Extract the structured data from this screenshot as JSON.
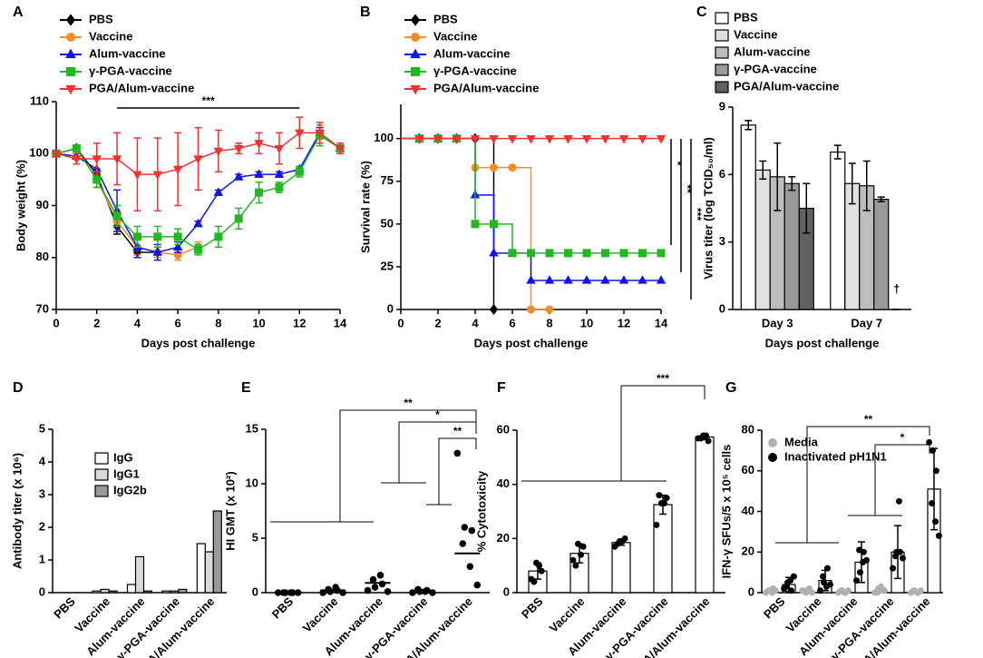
{
  "chart_data": [
    {
      "type": "line",
      "panel": "A",
      "x_label": "Days post challenge",
      "y_label": "Body weight (%)",
      "x": [
        0,
        1,
        2,
        3,
        4,
        5,
        6,
        7,
        8,
        9,
        10,
        11,
        12,
        13,
        14
      ],
      "xlim": [
        0,
        14
      ],
      "xticks": [
        0,
        2,
        4,
        6,
        8,
        10,
        12,
        14
      ],
      "ylim": [
        70,
        110
      ],
      "yticks": [
        70,
        80,
        90,
        100,
        110
      ],
      "annotations": [
        "***"
      ],
      "series": [
        {
          "name": "PBS",
          "color": "#000000",
          "marker": "diamond",
          "values": [
            100,
            101,
            96,
            86,
            81,
            81,
            null,
            null,
            null,
            null,
            null,
            null,
            null,
            null,
            null
          ],
          "errors": [
            0.5,
            0.5,
            1,
            1.5,
            1,
            1,
            null,
            null,
            null,
            null,
            null,
            null,
            null,
            null,
            null
          ]
        },
        {
          "name": "Vaccine",
          "color": "#f28c28",
          "marker": "circle",
          "values": [
            100,
            101,
            95,
            87,
            82,
            81,
            80.5,
            82,
            null,
            null,
            null,
            null,
            null,
            null,
            null
          ],
          "errors": [
            0.5,
            0.5,
            1.5,
            2,
            1.5,
            1,
            1,
            1,
            null,
            null,
            null,
            null,
            null,
            null,
            null
          ]
        },
        {
          "name": "Alum-vaccine",
          "color": "#1414e6",
          "marker": "triangle",
          "values": [
            100,
            99.5,
            97,
            89,
            82,
            81,
            82,
            86.5,
            92.5,
            95.5,
            96,
            96,
            97,
            104,
            101
          ],
          "errors": [
            0.5,
            0.5,
            2,
            4,
            2,
            1.5,
            1,
            0.5,
            0.5,
            0.5,
            0.5,
            0.5,
            0.5,
            1,
            0.5
          ]
        },
        {
          "name": "γ-PGA-vaccine",
          "color": "#22b822",
          "marker": "square",
          "values": [
            100,
            101,
            95,
            88,
            84,
            84,
            84,
            81.5,
            84,
            87.5,
            92.5,
            93.5,
            96.5,
            103.5,
            101
          ],
          "errors": [
            0.5,
            0.5,
            1.5,
            2,
            2,
            2,
            1.5,
            1,
            2,
            2,
            2,
            1,
            1,
            2,
            0.5
          ]
        },
        {
          "name": "PGA/Alum-vaccine",
          "color": "#ee3333",
          "marker": "triangle-down",
          "values": [
            100,
            99,
            99,
            99,
            96,
            96,
            97,
            99,
            100.5,
            101,
            102,
            101,
            104,
            104,
            101
          ],
          "errors": [
            0.5,
            1,
            3,
            5,
            7,
            7,
            7,
            6,
            4,
            1,
            2,
            3,
            3,
            2,
            1
          ]
        }
      ]
    },
    {
      "type": "step",
      "panel": "B",
      "x_label": "Days post challenge",
      "y_label": "Survival rate (%)",
      "x": [
        0,
        1,
        2,
        3,
        4,
        5,
        6,
        7,
        8,
        9,
        10,
        11,
        12,
        13,
        14
      ],
      "xlim": [
        0,
        14
      ],
      "xticks": [
        0,
        2,
        4,
        6,
        8,
        10,
        12,
        14
      ],
      "ylim": [
        0,
        120
      ],
      "yticks": [
        0,
        25,
        50,
        75,
        100
      ],
      "annotations": [
        "*",
        "**",
        "***"
      ],
      "series": [
        {
          "name": "PBS",
          "color": "#000000",
          "marker": "diamond",
          "values": [
            100,
            100,
            100,
            100,
            100,
            0,
            null,
            null,
            null,
            null,
            null,
            null,
            null,
            null,
            null
          ]
        },
        {
          "name": "Vaccine",
          "color": "#f28c28",
          "marker": "circle",
          "values": [
            100,
            100,
            100,
            100,
            83,
            83,
            83,
            0,
            0,
            null,
            null,
            null,
            null,
            null,
            null
          ]
        },
        {
          "name": "Alum-vaccine",
          "color": "#1414e6",
          "marker": "triangle",
          "values": [
            100,
            100,
            100,
            100,
            67,
            33,
            33,
            17,
            17,
            17,
            17,
            17,
            17,
            17,
            17
          ]
        },
        {
          "name": "γ-PGA-vaccine",
          "color": "#22b822",
          "marker": "square",
          "values": [
            100,
            100,
            100,
            100,
            50,
            50,
            33,
            33,
            33,
            33,
            33,
            33,
            33,
            33,
            33
          ]
        },
        {
          "name": "PGA/Alum-vaccine",
          "color": "#ee3333",
          "marker": "triangle-down",
          "values": [
            100,
            100,
            100,
            100,
            100,
            100,
            100,
            100,
            100,
            100,
            100,
            100,
            100,
            100,
            100
          ]
        }
      ]
    },
    {
      "type": "bar",
      "panel": "C",
      "x_label": "Days post challenge",
      "y_label": "Virus titer (log TCID₅₀/ml)",
      "categories": [
        "Day 3",
        "Day 7"
      ],
      "ylim": [
        0,
        9
      ],
      "yticks": [
        0,
        3,
        6,
        9
      ],
      "annotations": [
        "†"
      ],
      "series": [
        {
          "name": "PBS",
          "color": "#ffffff",
          "values": [
            8.2,
            7.0
          ],
          "errors": [
            0.2,
            0.3
          ]
        },
        {
          "name": "Vaccine",
          "color": "#e0e0e0",
          "values": [
            6.2,
            5.6
          ],
          "errors": [
            0.4,
            0.9
          ]
        },
        {
          "name": "Alum-vaccine",
          "color": "#bdbdbd",
          "values": [
            5.9,
            5.5
          ],
          "errors": [
            1.5,
            1.1
          ]
        },
        {
          "name": "γ-PGA-vaccine",
          "color": "#9a9a9a",
          "values": [
            5.6,
            4.9
          ],
          "errors": [
            0.3,
            0.1
          ]
        },
        {
          "name": "PGA/Alum-vaccine",
          "color": "#606060",
          "values": [
            4.5,
            0
          ],
          "errors": [
            1.1,
            0
          ]
        }
      ]
    },
    {
      "type": "bar",
      "panel": "D",
      "y_label": "Antibody titer (x 10⁶)",
      "categories": [
        "PBS",
        "Vaccine",
        "Alum-vaccine",
        "γ-PGA-vaccine",
        "PGA/Alum-vaccine"
      ],
      "ylim": [
        0,
        5
      ],
      "yticks": [
        0,
        1,
        2,
        3,
        4,
        5
      ],
      "series": [
        {
          "name": "IgG",
          "color": "#ffffff",
          "values": [
            0,
            0.05,
            0.25,
            0.05,
            1.5
          ]
        },
        {
          "name": "IgG1",
          "color": "#d9d9d9",
          "values": [
            0,
            0.1,
            1.1,
            0.05,
            1.25
          ]
        },
        {
          "name": "IgG2b",
          "color": "#9a9a9a",
          "values": [
            0,
            0.05,
            0.05,
            0.1,
            2.5
          ]
        }
      ]
    },
    {
      "type": "dot",
      "panel": "E",
      "y_label": "HI GMT  (x 10²)",
      "categories": [
        "PBS",
        "Vaccine",
        "Alum-vaccine",
        "γ-PGA-vaccine",
        "PGA/Alum-vaccine"
      ],
      "ylim": [
        0,
        15
      ],
      "yticks": [
        0,
        5,
        10,
        15
      ],
      "annotations": [
        "**",
        "*",
        "**"
      ],
      "series": [
        {
          "color": "#000000",
          "values": [
            0,
            0.2,
            0.9,
            0.15,
            3.6
          ],
          "points": [
            [
              0,
              0,
              0,
              0,
              0,
              0
            ],
            [
              0,
              0.1,
              0.2,
              0.3,
              0.5,
              0
            ],
            [
              0.2,
              0.5,
              0.8,
              1.2,
              1.6,
              0.1
            ],
            [
              0,
              0.1,
              0.2,
              0.3,
              0.1,
              0
            ],
            [
              12.8,
              6,
              5.7,
              4.5,
              2.4,
              0.7
            ]
          ]
        }
      ]
    },
    {
      "type": "bar",
      "panel": "F",
      "y_label": "% Cytotoxicity",
      "categories": [
        "PBS",
        "Vaccine",
        "Alum-vaccine",
        "γ-PGA-vaccine",
        "PGA/Alum-vaccine"
      ],
      "ylim": [
        0,
        60
      ],
      "yticks": [
        0,
        20,
        40,
        60
      ],
      "annotations": [
        "***"
      ],
      "series": [
        {
          "color": "#ffffff",
          "values": [
            8,
            14.5,
            18.5,
            32.5,
            57.5
          ],
          "errors": [
            3,
            3.5,
            1,
            3.5,
            1
          ],
          "points": [
            [
              5,
              11,
              8,
              4,
              10
            ],
            [
              12,
              18,
              17,
              10,
              14
            ],
            [
              17,
              19,
              20,
              18,
              19
            ],
            [
              25,
              33,
              35,
              36,
              33
            ],
            [
              57,
              58,
              56,
              57,
              58
            ]
          ]
        }
      ]
    },
    {
      "type": "bar",
      "panel": "G",
      "y_label": "IFN-γ SFUs/5 x 10⁵ cells",
      "categories": [
        "PBS",
        "Vaccine",
        "Alum-vaccine",
        "γ-PGA-vaccine",
        "PGA/Alum-vaccine"
      ],
      "ylim": [
        0,
        80
      ],
      "yticks": [
        0,
        20,
        40,
        60,
        80
      ],
      "annotations": [
        "**",
        "*"
      ],
      "series": [
        {
          "name": "Media",
          "color": "#ffffff",
          "point_color": "#b0b0b0",
          "values": [
            1,
            1,
            0.5,
            1,
            0.5
          ],
          "errors": [
            0.5,
            0.5,
            0.5,
            0.5,
            0.5
          ],
          "points": [
            [
              0,
              1,
              2,
              1,
              0,
              1
            ],
            [
              1,
              0,
              2,
              1,
              1,
              0
            ],
            [
              0,
              1,
              0,
              1,
              0,
              1
            ],
            [
              0,
              2,
              1,
              0,
              3,
              1
            ],
            [
              0,
              1,
              0,
              1,
              0,
              1
            ]
          ]
        },
        {
          "name": "Inactivated pH1N1",
          "color": "#ffffff",
          "point_color": "#000000",
          "values": [
            4,
            6,
            15,
            20,
            51
          ],
          "errors": [
            3.5,
            5,
            10,
            13,
            20
          ],
          "points": [
            [
              2,
              5,
              1,
              3,
              6,
              8
            ],
            [
              1,
              5,
              12,
              8,
              3,
              4
            ],
            [
              6,
              10,
              20,
              21,
              15,
              16
            ],
            [
              12,
              20,
              20,
              18,
              45,
              17
            ],
            [
              74,
              70,
              60,
              44,
              35,
              28
            ]
          ]
        }
      ]
    }
  ]
}
